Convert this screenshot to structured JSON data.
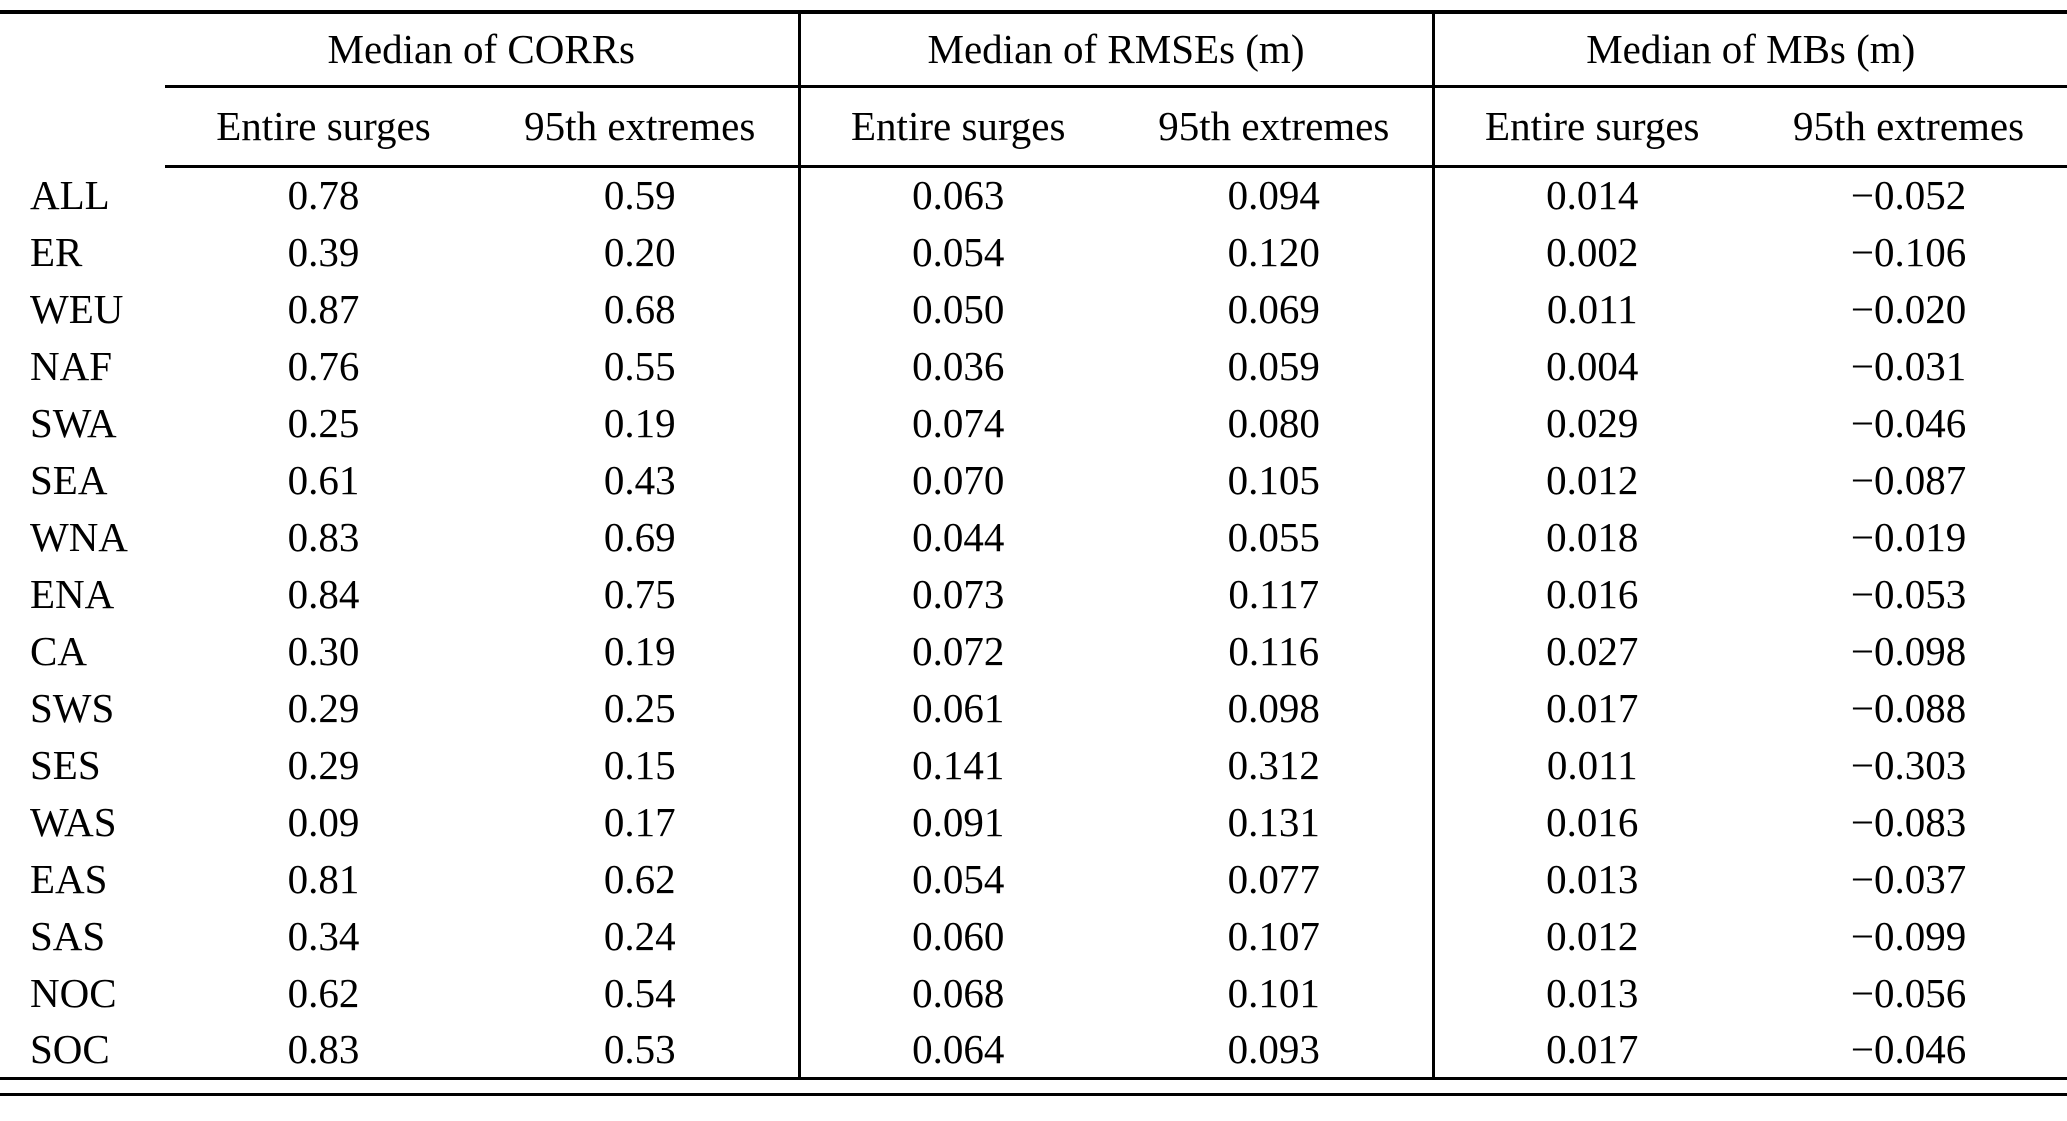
{
  "table": {
    "group_headers": [
      "Median of CORRs",
      "Median of RMSEs (m)",
      "Median of MBs (m)"
    ],
    "sub_headers": [
      "Entire surges",
      "95th extremes",
      "Entire surges",
      "95th extremes",
      "Entire surges",
      "95th extremes"
    ],
    "rows": [
      {
        "label": "ALL",
        "values": [
          "0.78",
          "0.59",
          "0.063",
          "0.094",
          "0.014",
          "−0.052"
        ]
      },
      {
        "label": "ER",
        "values": [
          "0.39",
          "0.20",
          "0.054",
          "0.120",
          "0.002",
          "−0.106"
        ]
      },
      {
        "label": "WEU",
        "values": [
          "0.87",
          "0.68",
          "0.050",
          "0.069",
          "0.011",
          "−0.020"
        ]
      },
      {
        "label": "NAF",
        "values": [
          "0.76",
          "0.55",
          "0.036",
          "0.059",
          "0.004",
          "−0.031"
        ]
      },
      {
        "label": "SWA",
        "values": [
          "0.25",
          "0.19",
          "0.074",
          "0.080",
          "0.029",
          "−0.046"
        ]
      },
      {
        "label": "SEA",
        "values": [
          "0.61",
          "0.43",
          "0.070",
          "0.105",
          "0.012",
          "−0.087"
        ]
      },
      {
        "label": "WNA",
        "values": [
          "0.83",
          "0.69",
          "0.044",
          "0.055",
          "0.018",
          "−0.019"
        ]
      },
      {
        "label": "ENA",
        "values": [
          "0.84",
          "0.75",
          "0.073",
          "0.117",
          "0.016",
          "−0.053"
        ]
      },
      {
        "label": "CA",
        "values": [
          "0.30",
          "0.19",
          "0.072",
          "0.116",
          "0.027",
          "−0.098"
        ]
      },
      {
        "label": "SWS",
        "values": [
          "0.29",
          "0.25",
          "0.061",
          "0.098",
          "0.017",
          "−0.088"
        ]
      },
      {
        "label": "SES",
        "values": [
          "0.29",
          "0.15",
          "0.141",
          "0.312",
          "0.011",
          "−0.303"
        ]
      },
      {
        "label": "WAS",
        "values": [
          "0.09",
          "0.17",
          "0.091",
          "0.131",
          "0.016",
          "−0.083"
        ]
      },
      {
        "label": "EAS",
        "values": [
          "0.81",
          "0.62",
          "0.054",
          "0.077",
          "0.013",
          "−0.037"
        ]
      },
      {
        "label": "SAS",
        "values": [
          "0.34",
          "0.24",
          "0.060",
          "0.107",
          "0.012",
          "−0.099"
        ]
      },
      {
        "label": "NOC",
        "values": [
          "0.62",
          "0.54",
          "0.068",
          "0.101",
          "0.013",
          "−0.056"
        ]
      },
      {
        "label": "SOC",
        "values": [
          "0.83",
          "0.53",
          "0.064",
          "0.093",
          "0.017",
          "−0.046"
        ]
      }
    ]
  }
}
